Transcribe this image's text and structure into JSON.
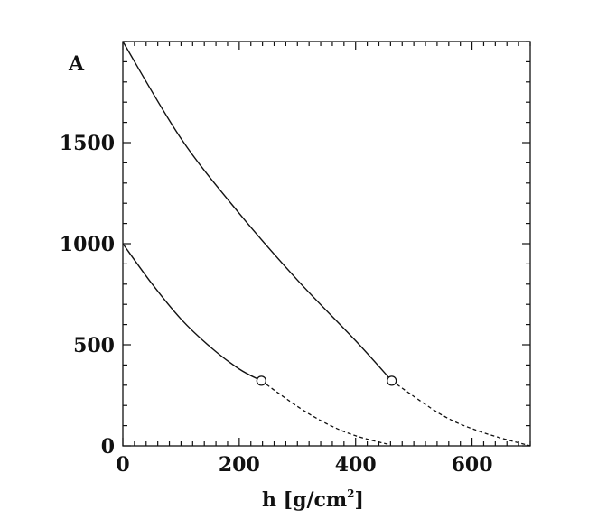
{
  "chart_data": {
    "type": "line",
    "title": "",
    "xlabel": "h  [g/cm",
    "xlabel_superscript": "2",
    "xlabel_close": "]",
    "ylabel": "A",
    "xlim": [
      0,
      700
    ],
    "ylim": [
      0,
      2000
    ],
    "x_ticks": [
      0,
      200,
      400,
      600
    ],
    "x_tick_labels": [
      "0",
      "200",
      "400",
      "600"
    ],
    "y_ticks": [
      0,
      500,
      1000,
      1500
    ],
    "y_tick_labels": [
      "0",
      "500",
      "1000",
      "1500"
    ],
    "x_minor_step": 20,
    "y_minor_step": 100,
    "grid": false,
    "series": [
      {
        "solid": {
          "x": [
            0,
            50,
            100,
            150,
            200,
            238
          ],
          "y": [
            1000,
            802,
            627,
            490,
            380,
            322
          ]
        },
        "dashed": {
          "x": [
            238,
            300,
            350,
            400,
            460
          ],
          "y": [
            322,
            195,
            110,
            50,
            5
          ]
        },
        "marker": {
          "x": 238,
          "y": 322
        }
      },
      {
        "solid": {
          "x": [
            0,
            100,
            200,
            300,
            400,
            462
          ],
          "y": [
            2000,
            1520,
            1150,
            820,
            520,
            322
          ]
        },
        "dashed": {
          "x": [
            462,
            550,
            620,
            700
          ],
          "y": [
            322,
            150,
            65,
            0
          ]
        },
        "marker": {
          "x": 462,
          "y": 322
        }
      }
    ]
  }
}
